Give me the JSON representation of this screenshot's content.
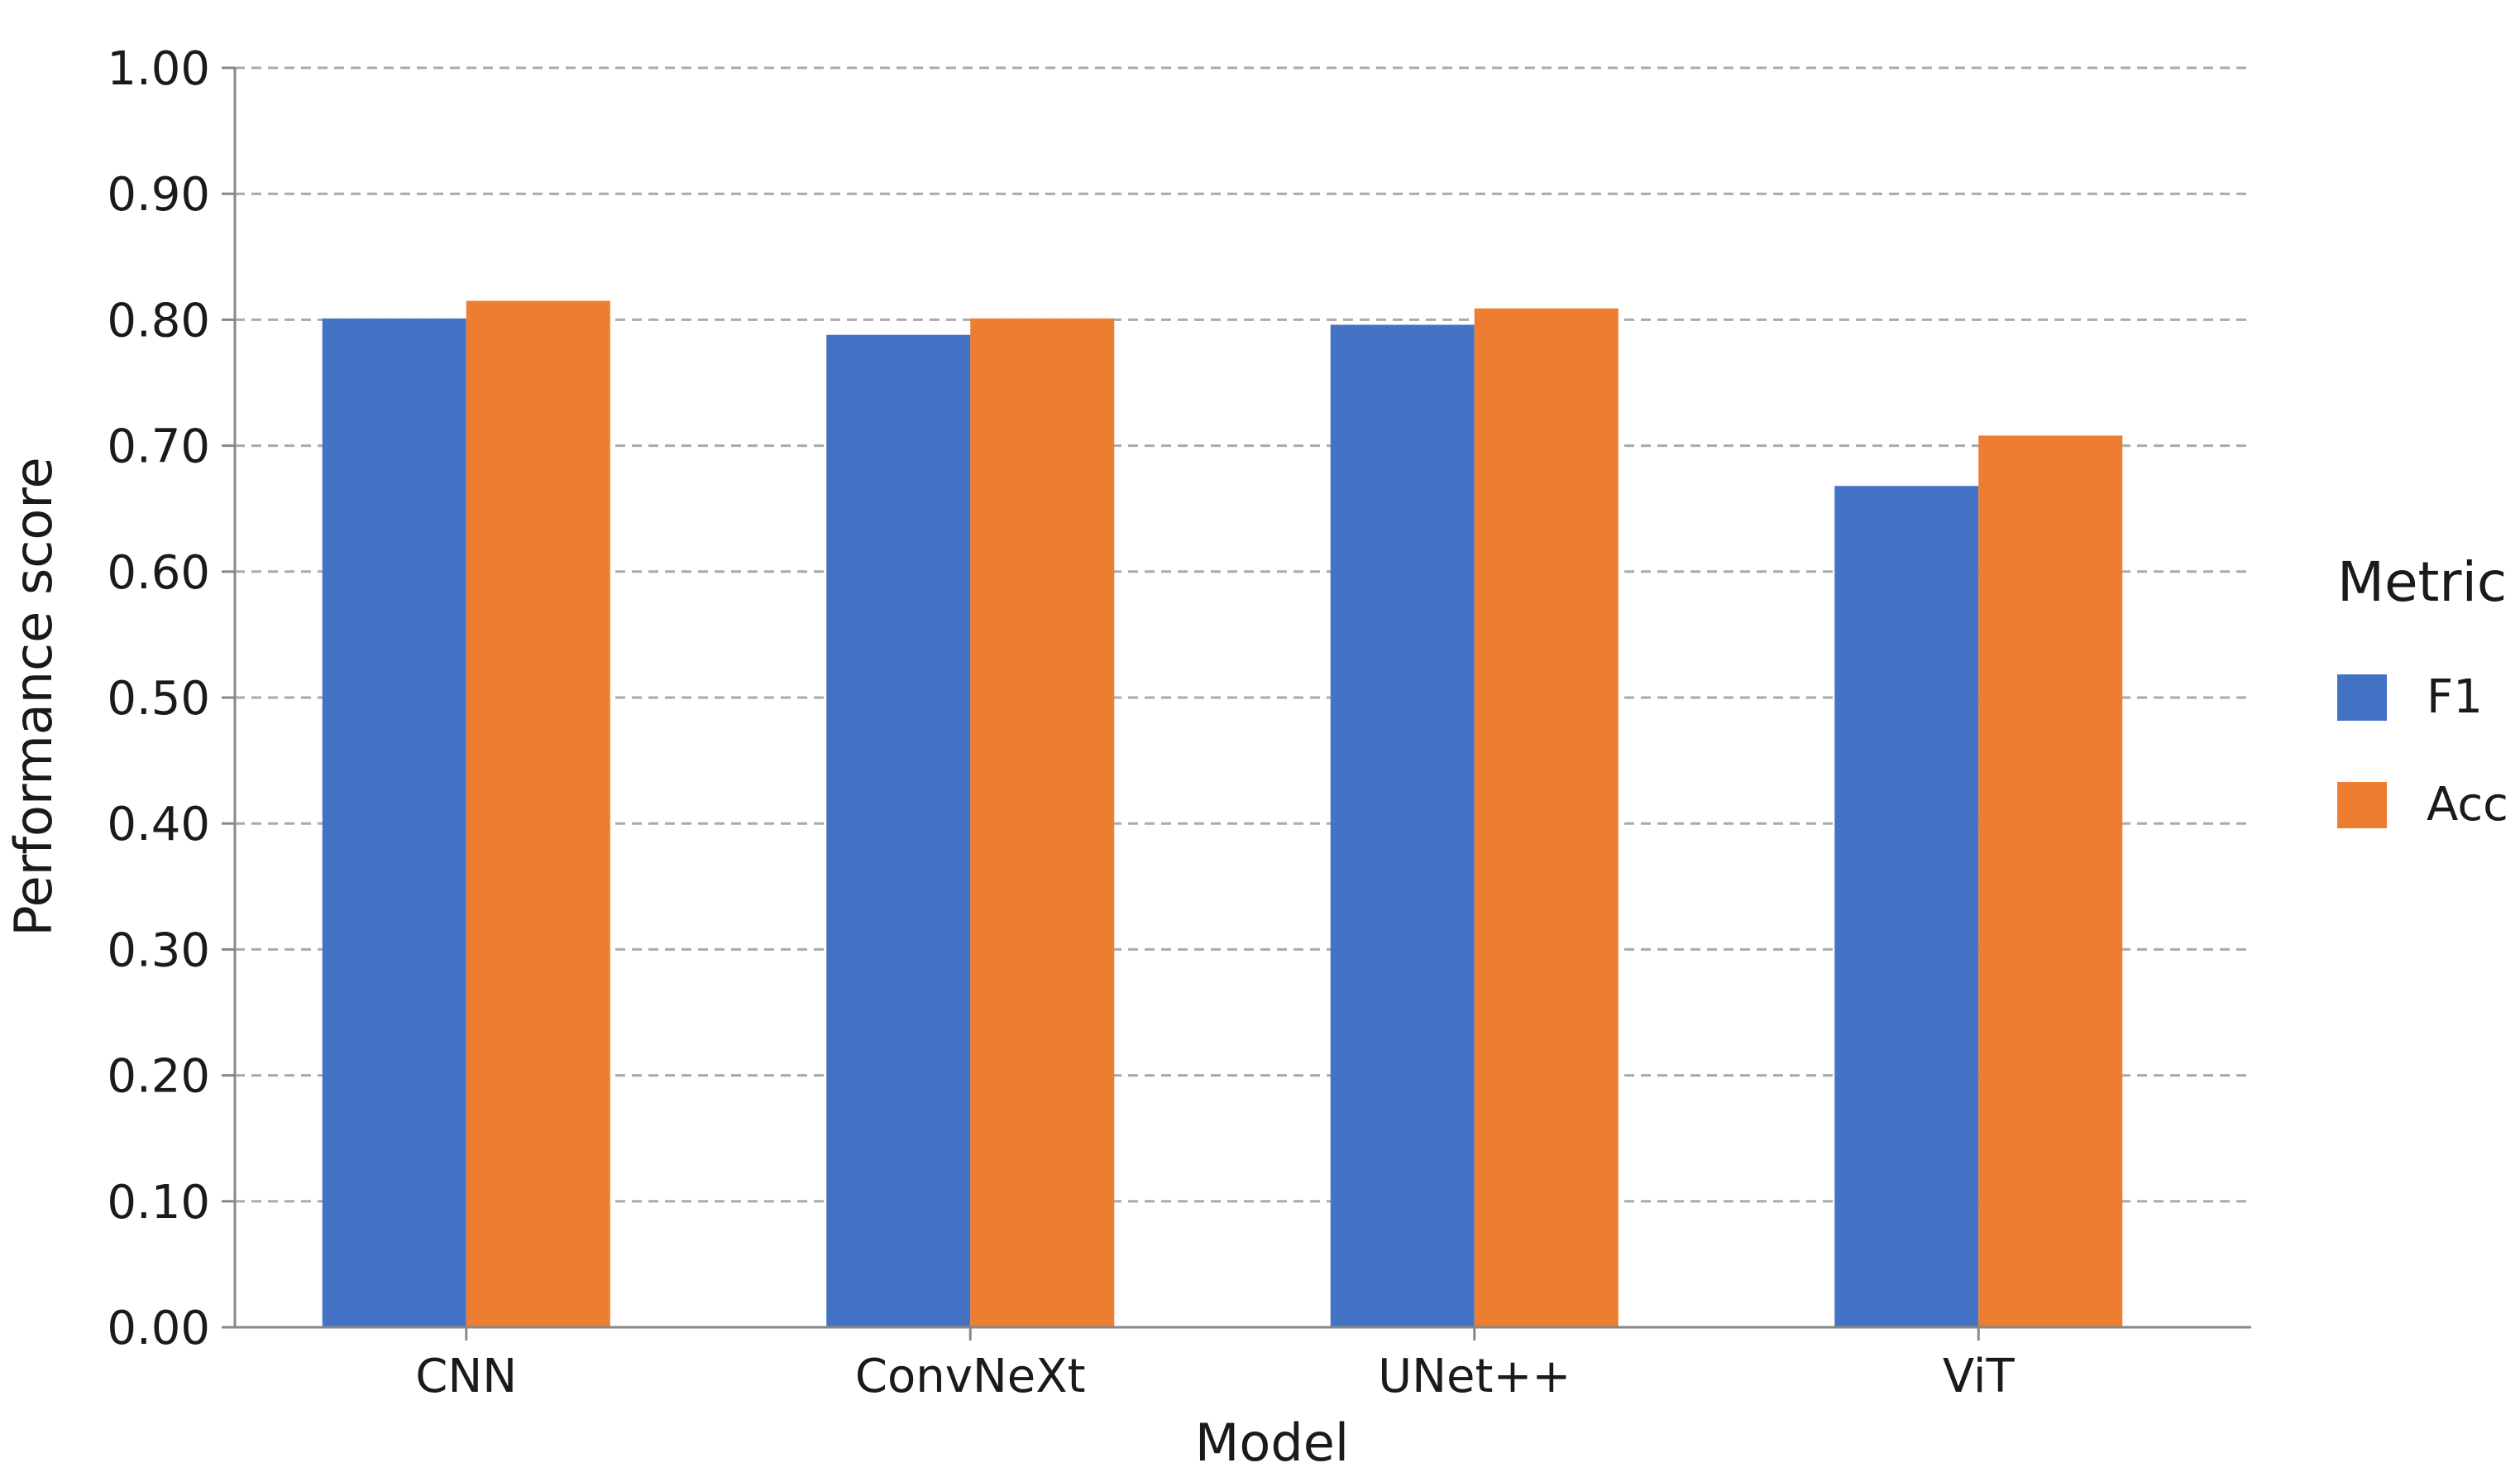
{
  "chart_data": {
    "type": "bar",
    "title": "",
    "xlabel": "Model",
    "ylabel": "Performance score",
    "categories": [
      "CNN",
      "ConvNeXt",
      "UNet++",
      "ViT"
    ],
    "series": [
      {
        "name": "F1",
        "values": [
          0.801,
          0.788,
          0.796,
          0.668
        ]
      },
      {
        "name": "Acc",
        "values": [
          0.815,
          0.801,
          0.809,
          0.708
        ]
      }
    ],
    "ylim": [
      0,
      1.0
    ],
    "yticks": [
      "0.00",
      "0.10",
      "0.20",
      "0.30",
      "0.40",
      "0.50",
      "0.60",
      "0.70",
      "0.80",
      "0.90",
      "1.00"
    ],
    "grid": "horizontal dashed",
    "legend": {
      "title": "Metric",
      "placement": "right"
    },
    "colors": {
      "F1": "#4472c4",
      "Acc": "#ed7d31",
      "grid": "#aaaaaa",
      "axis": "#888888"
    }
  }
}
